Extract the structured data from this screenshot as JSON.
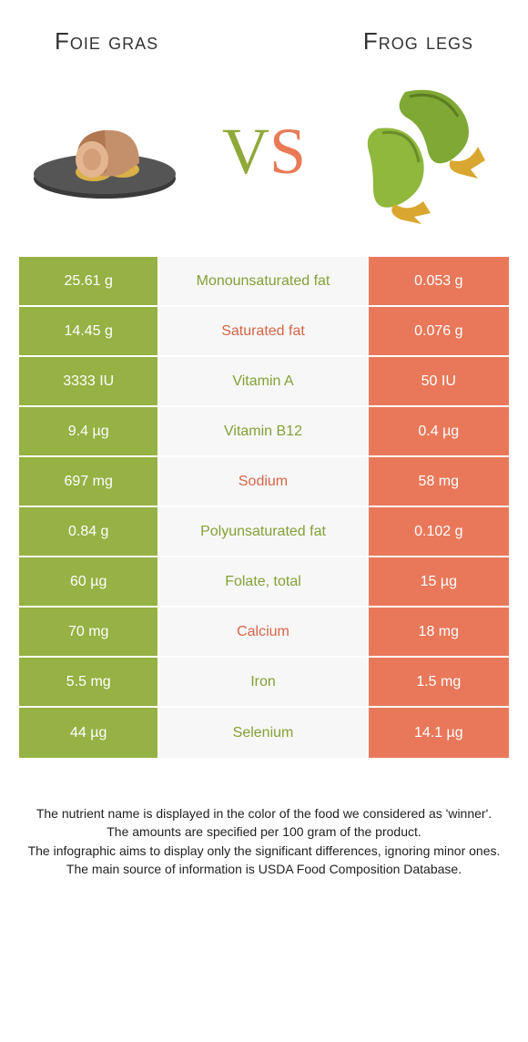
{
  "colors": {
    "green": "#96b144",
    "orange": "#e9785a",
    "midbg": "#f7f7f7",
    "green_dark": "#84a038",
    "orange_dark": "#d56548"
  },
  "header": {
    "left_title": "Foie gras",
    "right_title": "Frog legs",
    "vs_v": "V",
    "vs_s": "S"
  },
  "rows": [
    {
      "left": "25.61 g",
      "label": "Monounsaturated fat",
      "right": "0.053 g",
      "winner": "left"
    },
    {
      "left": "14.45 g",
      "label": "Saturated fat",
      "right": "0.076 g",
      "winner": "right"
    },
    {
      "left": "3333 IU",
      "label": "Vitamin A",
      "right": "50 IU",
      "winner": "left"
    },
    {
      "left": "9.4 µg",
      "label": "Vitamin B12",
      "right": "0.4 µg",
      "winner": "left"
    },
    {
      "left": "697 mg",
      "label": "Sodium",
      "right": "58 mg",
      "winner": "right"
    },
    {
      "left": "0.84 g",
      "label": "Polyunsaturated fat",
      "right": "0.102 g",
      "winner": "left"
    },
    {
      "left": "60 µg",
      "label": "Folate, total",
      "right": "15 µg",
      "winner": "left"
    },
    {
      "left": "70 mg",
      "label": "Calcium",
      "right": "18 mg",
      "winner": "right"
    },
    {
      "left": "5.5 mg",
      "label": "Iron",
      "right": "1.5 mg",
      "winner": "left"
    },
    {
      "left": "44 µg",
      "label": "Selenium",
      "right": "14.1 µg",
      "winner": "left"
    }
  ],
  "footer": {
    "line1": "The nutrient name is displayed in the color of the food we considered as 'winner'.",
    "line2": "The amounts are specified per 100 gram of the product.",
    "line3": "The infographic aims to display only the significant differences, ignoring minor ones.",
    "line4": "The main source of information is USDA Food Composition Database."
  }
}
